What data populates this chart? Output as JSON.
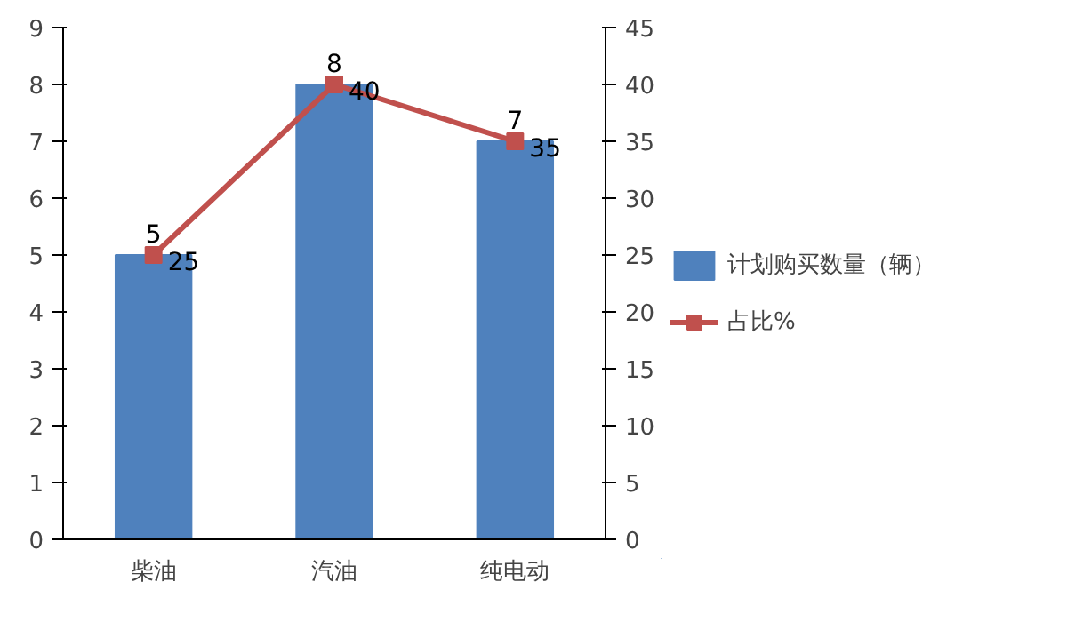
{
  "chart_data": {
    "type": "bar",
    "categories": [
      "柴油",
      "汽油",
      "纯电动"
    ],
    "series": [
      {
        "name": "计划购买数量（辆）",
        "color": "#4f81bd",
        "values": [
          5,
          8,
          7
        ]
      },
      {
        "name": "占比%",
        "type": "line",
        "axis": "y2",
        "color": "#c0504d",
        "values": [
          25,
          40,
          35
        ],
        "marker": "square"
      }
    ],
    "ylim": [
      0,
      9
    ],
    "yticks": [
      0,
      1,
      2,
      3,
      4,
      5,
      6,
      7,
      8,
      9
    ],
    "y2lim": [
      0,
      45
    ],
    "y2ticks": [
      0,
      5,
      10,
      15,
      20,
      25,
      30,
      35,
      40,
      45
    ],
    "data_labels": true,
    "legend": "right",
    "grid": false
  }
}
